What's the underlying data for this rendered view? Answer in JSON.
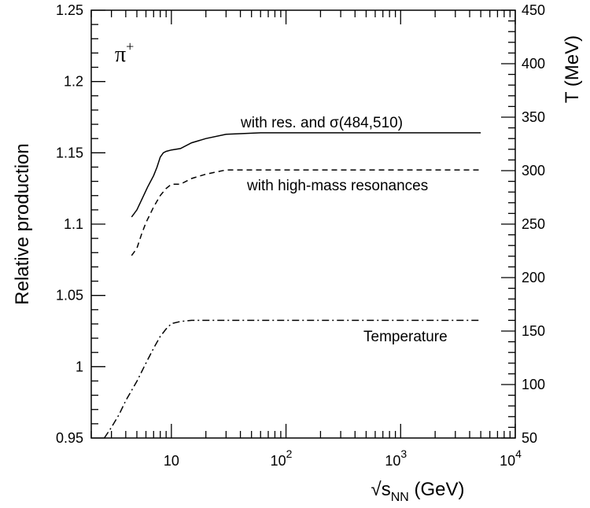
{
  "chart_data": {
    "type": "line",
    "ylabel": "Relative production",
    "y2label": "T (MeV)",
    "xlabel_main": "√s",
    "xlabel_sub": "NN",
    "xlabel_unit": " (GeV)",
    "xscale": "log",
    "xlim": [
      2,
      10000
    ],
    "ylim": [
      0.95,
      1.25
    ],
    "y2lim": [
      50,
      450
    ],
    "particle_label": "π",
    "particle_sup": "+",
    "x_ticks": [
      {
        "base": "10",
        "exp": "",
        "value": 10
      },
      {
        "base": "10",
        "exp": "2",
        "value": 100
      },
      {
        "base": "10",
        "exp": "3",
        "value": 1000
      },
      {
        "base": "10",
        "exp": "4",
        "value": 10000
      }
    ],
    "y_ticks": [
      "0.95",
      "1",
      "1.05",
      "1.1",
      "1.15",
      "1.2",
      "1.25"
    ],
    "y2_ticks": [
      "50",
      "100",
      "150",
      "200",
      "250",
      "300",
      "350",
      "400",
      "450"
    ],
    "series": [
      {
        "name": "with res. and σ(484,510)",
        "axis": "left",
        "style": "solid",
        "x": [
          4.5,
          5,
          5.5,
          6.2,
          7,
          7.5,
          8,
          8.5,
          9,
          10,
          12,
          15,
          20,
          30,
          60,
          100,
          1000,
          5000
        ],
        "y": [
          1.105,
          1.11,
          1.117,
          1.126,
          1.134,
          1.14,
          1.147,
          1.15,
          1.151,
          1.152,
          1.153,
          1.157,
          1.16,
          1.163,
          1.164,
          1.164,
          1.164,
          1.164
        ]
      },
      {
        "name": "with high-mass resonances",
        "axis": "left",
        "style": "dashed",
        "x": [
          4.5,
          5,
          5.5,
          6,
          7,
          8,
          9,
          10,
          12,
          15,
          20,
          30,
          100,
          1000,
          5000
        ],
        "y": [
          1.078,
          1.083,
          1.093,
          1.101,
          1.112,
          1.12,
          1.125,
          1.128,
          1.128,
          1.132,
          1.135,
          1.138,
          1.138,
          1.138,
          1.138
        ]
      },
      {
        "name": "Temperature",
        "axis": "right",
        "style": "dashdot",
        "x": [
          2.6,
          3,
          3.5,
          4,
          5,
          6,
          7,
          8,
          9,
          10,
          12,
          15,
          20,
          50,
          100,
          1000,
          5000
        ],
        "y": [
          50,
          60,
          72,
          85,
          103,
          120,
          134,
          145,
          152,
          157,
          159,
          160,
          160,
          160,
          160,
          160,
          160
        ]
      }
    ]
  }
}
